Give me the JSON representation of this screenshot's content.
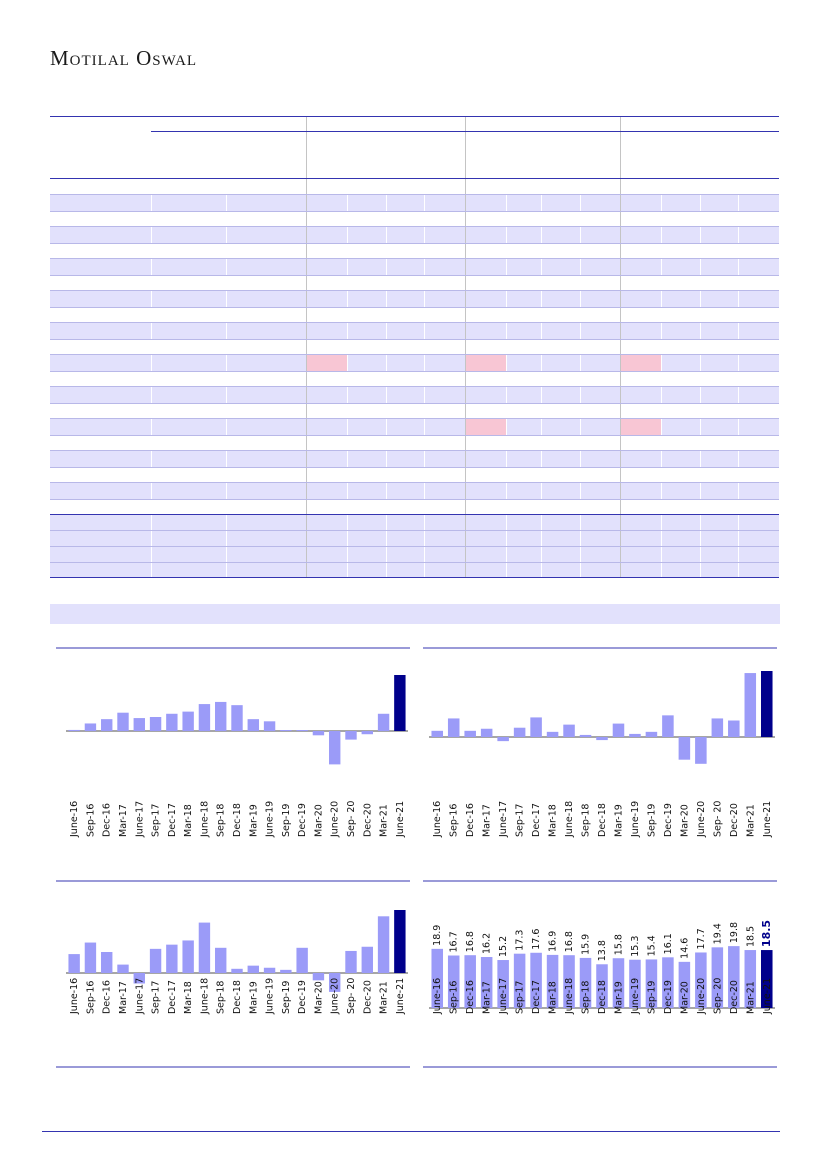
{
  "header": {
    "brand": "Motilal Oswal"
  },
  "colors": {
    "bar": "#9b9bf8",
    "highlight": "#00008b",
    "band": "#e2e1fc",
    "pink": "#f8c6d4",
    "rule": "#3434b0"
  },
  "chart_data": [
    {
      "type": "bar",
      "title": "",
      "categories": [
        "June-16",
        "Sep-16",
        "Dec-16",
        "Mar-17",
        "June-17",
        "Sep-17",
        "Dec-17",
        "Mar-18",
        "June-18",
        "Sep-18",
        "Dec-18",
        "Mar-19",
        "June-19",
        "Sep-19",
        "Dec-19",
        "Mar-20",
        "June-20",
        "Sep- 20",
        "Dec-20",
        "Mar-21",
        "June-21"
      ],
      "values": [
        1,
        7,
        11,
        17,
        12,
        13,
        16,
        18,
        25,
        27,
        24,
        11,
        9,
        0.5,
        0.5,
        -4,
        -31,
        -8,
        -3,
        16,
        52
      ],
      "highlight_last": true
    },
    {
      "type": "bar",
      "title": "",
      "categories": [
        "June-16",
        "Sep-16",
        "Dec-16",
        "Mar-17",
        "June-17",
        "Sep-17",
        "Dec-17",
        "Mar-18",
        "June-18",
        "Sep-18",
        "Dec-18",
        "Mar-19",
        "June-19",
        "Sep-19",
        "Dec-19",
        "Mar-20",
        "June-20",
        "Sep- 20",
        "Dec-20",
        "Mar-21",
        "June-21"
      ],
      "values": [
        6,
        18,
        6,
        8,
        -4,
        9,
        19,
        5,
        12,
        2,
        -3,
        13,
        3,
        5,
        21,
        -22,
        -26,
        18,
        16,
        62,
        64
      ],
      "highlight_last": true
    },
    {
      "type": "bar",
      "title": "",
      "categories": [
        "June-16",
        "Sep-16",
        "Dec-16",
        "Mar-17",
        "June-17",
        "Sep-17",
        "Dec-17",
        "Mar-18",
        "June-18",
        "Sep-18",
        "Dec-18",
        "Mar-19",
        "June-19",
        "Sep-19",
        "Dec-19",
        "Mar-20",
        "June-20",
        "Sep- 20",
        "Dec-20",
        "Mar-21",
        "June-21"
      ],
      "values": [
        18,
        29,
        20,
        8,
        -10,
        23,
        27,
        31,
        48,
        24,
        4,
        7,
        5,
        3,
        24,
        -7,
        -18,
        21,
        25,
        54,
        60
      ],
      "highlight_last": true
    },
    {
      "type": "bar",
      "title": "",
      "categories": [
        "June-16",
        "Sep-16",
        "Dec-16",
        "Mar-17",
        "June-17",
        "Sep-17",
        "Dec-17",
        "Mar-18",
        "June-18",
        "Sep-18",
        "Dec-18",
        "Mar-19",
        "June-19",
        "Sep-19",
        "Dec-19",
        "Mar-20",
        "June-20",
        "Sep- 20",
        "Dec-20",
        "Mar-21",
        "June-21"
      ],
      "values": [
        18.9,
        16.7,
        16.8,
        16.2,
        15.2,
        17.3,
        17.6,
        16.9,
        16.8,
        15.9,
        13.8,
        15.8,
        15.3,
        15.4,
        16.1,
        14.6,
        17.7,
        19.4,
        19.8,
        18.5,
        18.5
      ],
      "data_labels": [
        "18.9",
        "16.7",
        "16.8",
        "16.2",
        "15.2",
        "17.3",
        "17.6",
        "16.9",
        "16.8",
        "15.9",
        "13.8",
        "15.8",
        "15.3",
        "15.4",
        "16.1",
        "14.6",
        "17.7",
        "19.4",
        "19.8",
        "18.5",
        "18.5"
      ],
      "ylim": [
        0,
        25
      ],
      "highlight_last": true
    }
  ]
}
